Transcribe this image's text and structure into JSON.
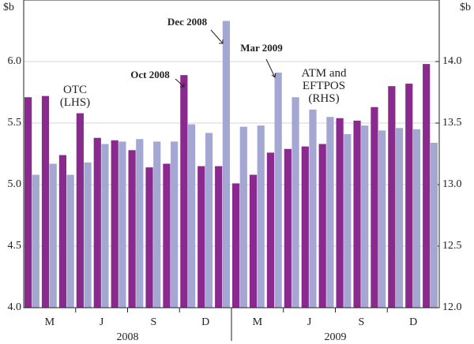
{
  "chart_data": {
    "type": "bar",
    "y_unit_left": "$b",
    "y_unit_right": "$b",
    "categories": [
      null,
      "M",
      null,
      null,
      "J",
      null,
      null,
      "S",
      null,
      null,
      "D",
      null,
      null,
      "M",
      null,
      null,
      "J",
      null,
      null,
      "S",
      null,
      null,
      "D",
      null
    ],
    "years": [
      {
        "label": "2008",
        "from": 0,
        "to": 11
      },
      {
        "label": "2009",
        "from": 12,
        "to": 23
      }
    ],
    "series": [
      {
        "name": "OTC\n(LHS)",
        "color": "#8b2a8e",
        "axis": "y",
        "values": [
          5.71,
          5.72,
          5.24,
          5.58,
          5.38,
          5.36,
          5.28,
          5.14,
          5.17,
          5.89,
          5.15,
          5.15,
          5.01,
          5.08,
          5.26,
          5.29,
          5.31,
          5.33,
          5.54,
          5.52,
          5.63,
          5.8,
          5.82,
          5.98
        ]
      },
      {
        "name": "ATM and\nEFTPOS\n(RHS)",
        "color": "#a5a7d3",
        "axis": "y2",
        "values": [
          13.08,
          13.17,
          13.08,
          13.18,
          13.33,
          13.35,
          13.37,
          13.35,
          13.35,
          13.49,
          13.42,
          14.33,
          13.47,
          13.48,
          13.91,
          13.71,
          13.61,
          13.55,
          13.41,
          13.48,
          13.44,
          13.46,
          13.45,
          13.34
        ]
      }
    ],
    "annotations": [
      {
        "text": "Oct 2008",
        "series": 0,
        "index": 9
      },
      {
        "text": "Dec 2008",
        "series": 1,
        "index": 11
      },
      {
        "text": "Mar 2009",
        "series": 1,
        "index": 14
      }
    ],
    "ylim": [
      4.0,
      6.5
    ],
    "yticks": [
      {
        "value": 4,
        "label": "4.0"
      },
      {
        "value": 4.5,
        "label": "4.5"
      },
      {
        "value": 5,
        "label": "5.0"
      },
      {
        "value": 5.5,
        "label": "5.5"
      },
      {
        "value": 6,
        "label": "6.0"
      }
    ],
    "y2lim": [
      12.0,
      14.5
    ],
    "y2ticks": [
      {
        "value": 12,
        "label": "12.0"
      },
      {
        "value": 12.5,
        "label": "12.5"
      },
      {
        "value": 13,
        "label": "13.0"
      },
      {
        "value": 13.5,
        "label": "13.5"
      },
      {
        "value": 14,
        "label": "14.0"
      }
    ],
    "grid": true
  }
}
